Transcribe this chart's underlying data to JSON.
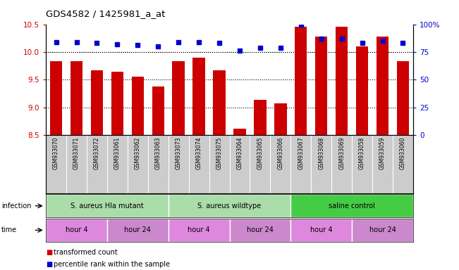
{
  "title": "GDS4582 / 1425981_a_at",
  "samples": [
    "GSM933070",
    "GSM933071",
    "GSM933072",
    "GSM933061",
    "GSM933062",
    "GSM933063",
    "GSM933073",
    "GSM933074",
    "GSM933075",
    "GSM933064",
    "GSM933065",
    "GSM933066",
    "GSM933067",
    "GSM933068",
    "GSM933069",
    "GSM933058",
    "GSM933059",
    "GSM933060"
  ],
  "bar_values": [
    9.83,
    9.83,
    9.67,
    9.64,
    9.55,
    9.38,
    9.83,
    9.9,
    9.67,
    8.62,
    9.13,
    9.07,
    10.45,
    10.28,
    10.45,
    10.1,
    10.28,
    9.83
  ],
  "percentile_values": [
    84,
    84,
    83,
    82,
    81,
    80,
    84,
    84,
    83,
    76,
    79,
    79,
    100,
    87,
    87,
    83,
    85,
    83
  ],
  "bar_color": "#cc0000",
  "percentile_color": "#0000cc",
  "ylim_left": [
    8.5,
    10.5
  ],
  "ylim_right": [
    0,
    100
  ],
  "yticks_left": [
    8.5,
    9.0,
    9.5,
    10.0,
    10.5
  ],
  "yticks_right": [
    0,
    25,
    50,
    75,
    100
  ],
  "ytick_labels_right": [
    "0",
    "25",
    "50",
    "75",
    "100%"
  ],
  "grid_values": [
    9.0,
    9.5,
    10.0
  ],
  "infection_groups": [
    {
      "label": "S. aureus Hla mutant",
      "start": 0,
      "end": 6,
      "color": "#aaddaa"
    },
    {
      "label": "S. aureus wildtype",
      "start": 6,
      "end": 12,
      "color": "#aaddaa"
    },
    {
      "label": "saline control",
      "start": 12,
      "end": 18,
      "color": "#44cc44"
    }
  ],
  "time_groups": [
    {
      "label": "hour 4",
      "start": 0,
      "end": 3,
      "color": "#dd88dd"
    },
    {
      "label": "hour 24",
      "start": 3,
      "end": 6,
      "color": "#cc88cc"
    },
    {
      "label": "hour 4",
      "start": 6,
      "end": 9,
      "color": "#dd88dd"
    },
    {
      "label": "hour 24",
      "start": 9,
      "end": 12,
      "color": "#cc88cc"
    },
    {
      "label": "hour 4",
      "start": 12,
      "end": 15,
      "color": "#dd88dd"
    },
    {
      "label": "hour 24",
      "start": 15,
      "end": 18,
      "color": "#cc88cc"
    }
  ],
  "infection_label": "infection",
  "time_label": "time",
  "legend_entries": [
    {
      "color": "#cc0000",
      "label": "transformed count"
    },
    {
      "color": "#0000cc",
      "label": "percentile rank within the sample"
    }
  ],
  "sample_area_color": "#cccccc",
  "left_ylabel_color": "#cc0000",
  "right_ylabel_color": "#0000cc",
  "fig_width": 6.51,
  "fig_height": 3.84
}
